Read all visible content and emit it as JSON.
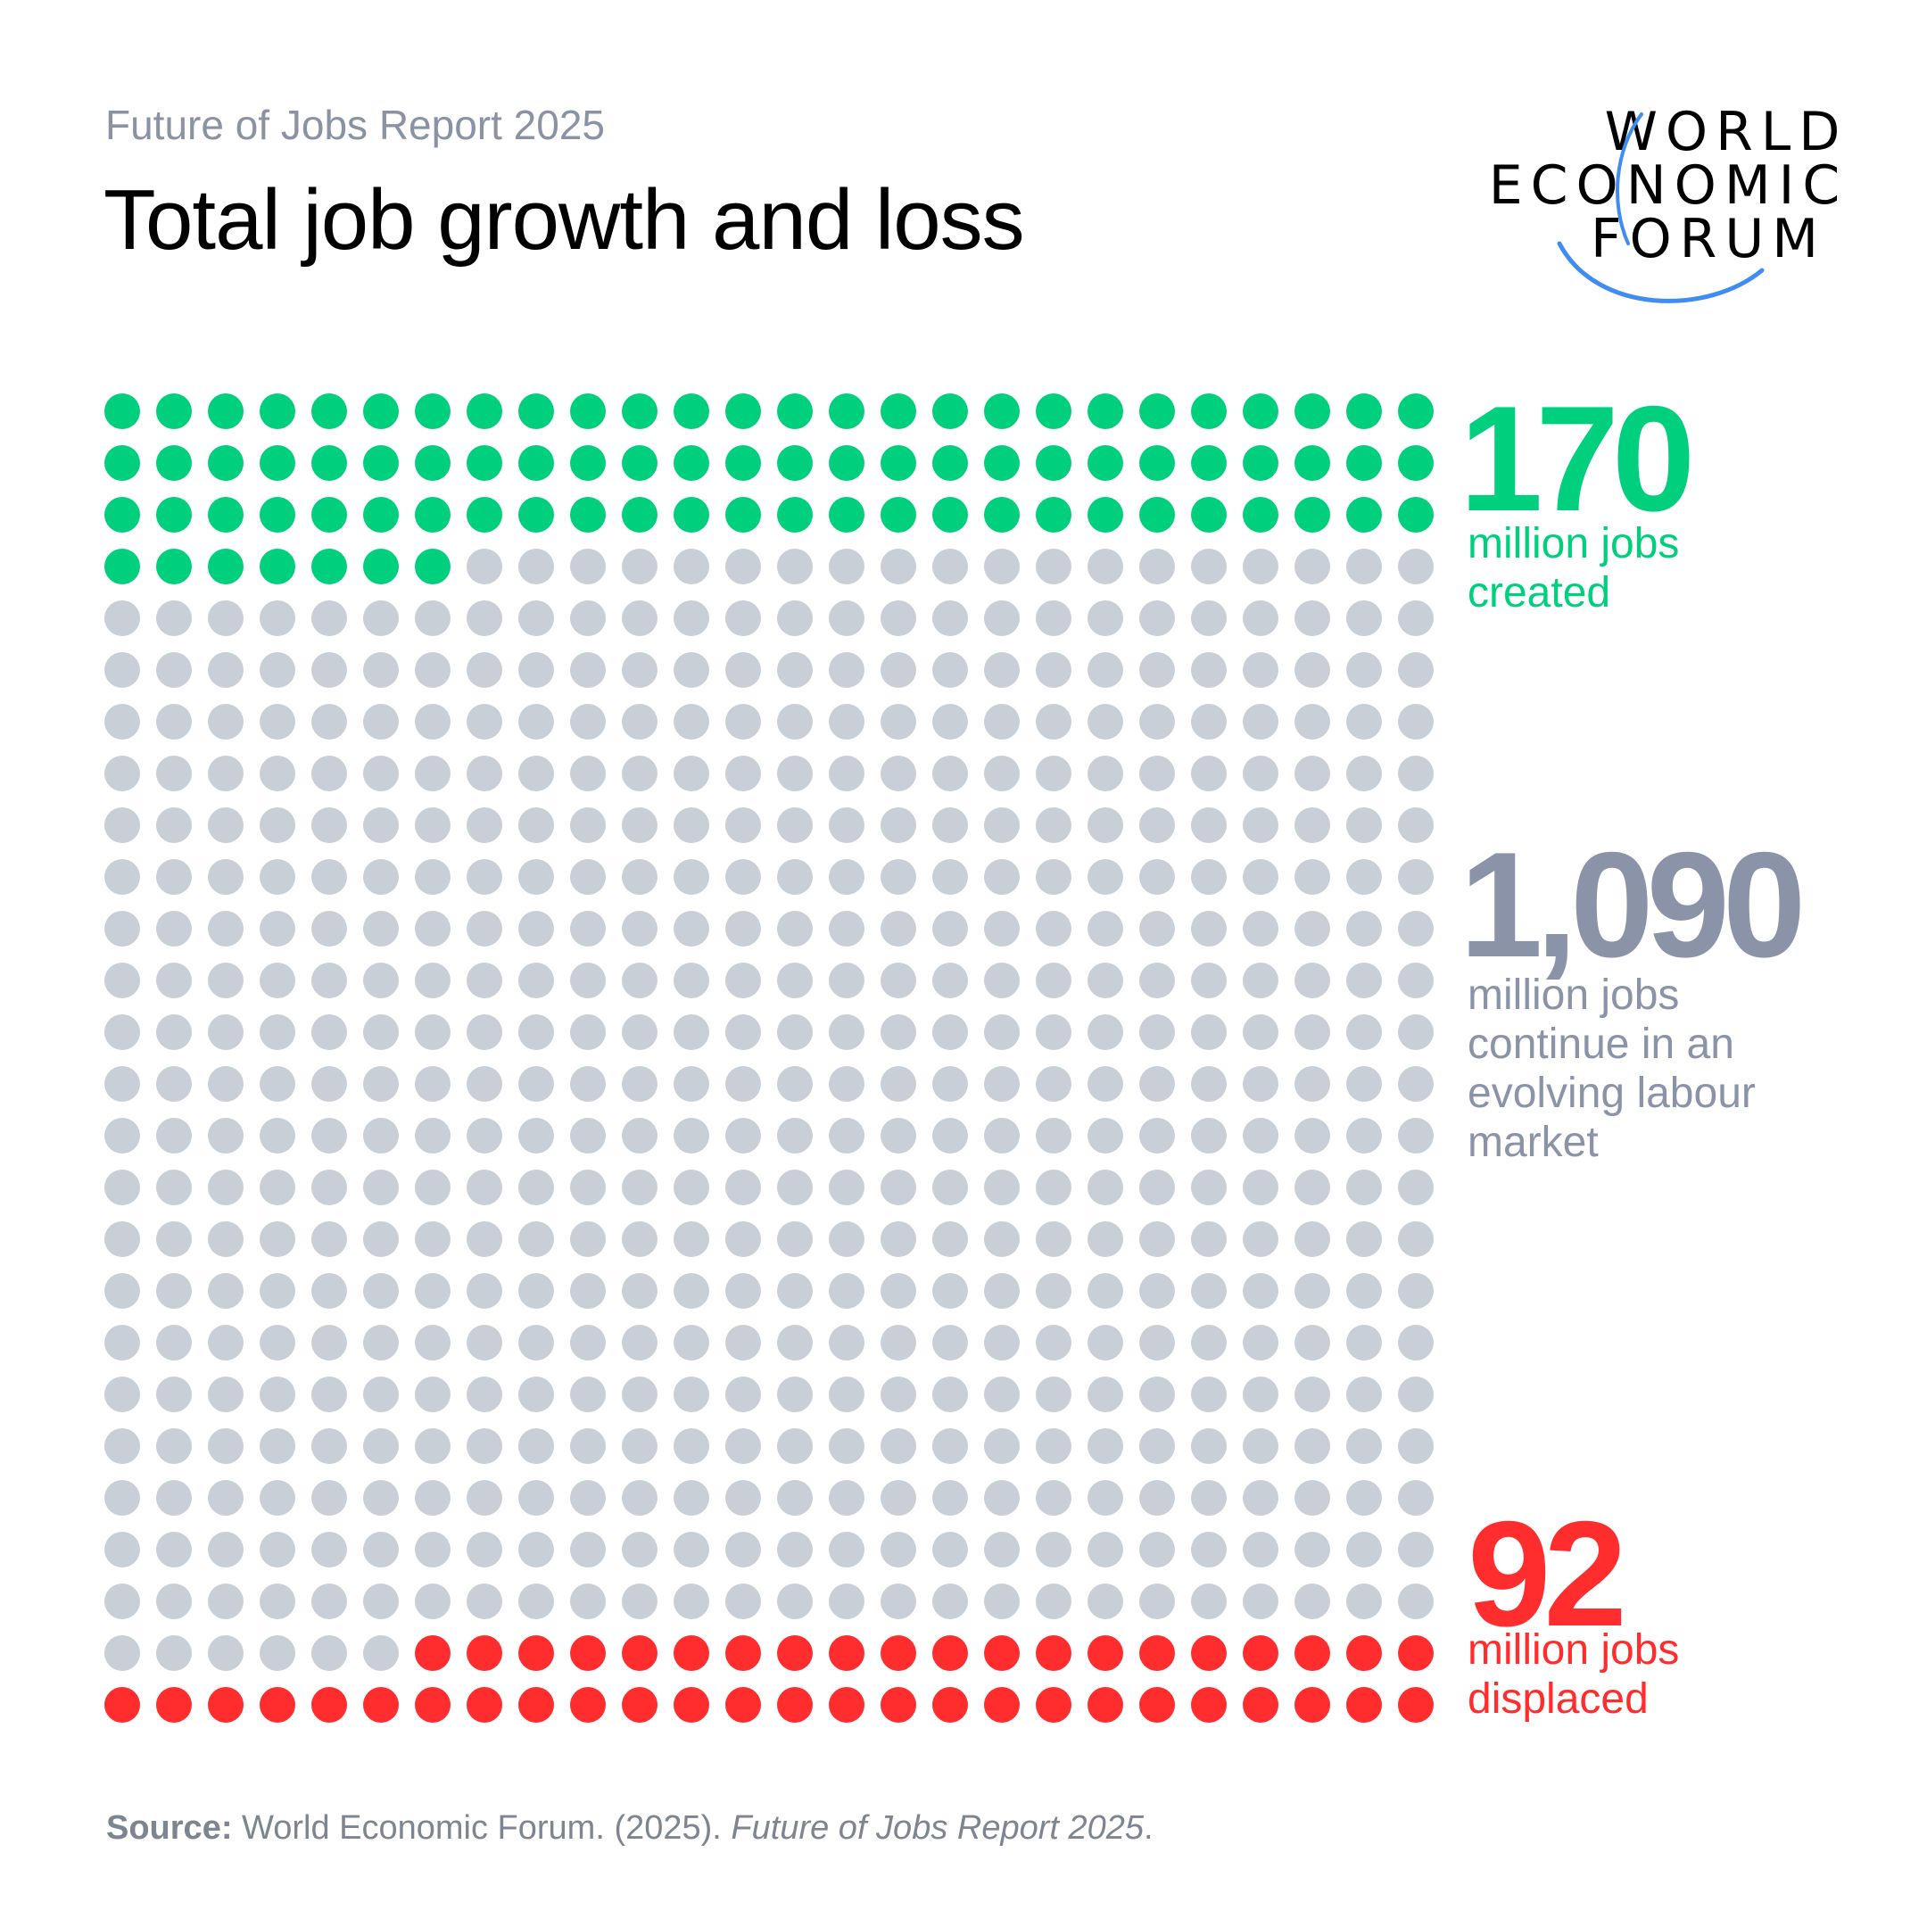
{
  "header": {
    "subtitle": "Future of Jobs Report 2025",
    "title": "Total job growth and loss"
  },
  "logo": {
    "lines": [
      "WORLD",
      "ECONOMIC",
      "FORUM"
    ],
    "arc_color": "#3f8df2"
  },
  "chart_data": {
    "type": "waffle",
    "columns": 26,
    "rows": 26,
    "units": "million jobs",
    "series": [
      {
        "name": "million jobs created",
        "value": 170,
        "dots": 85,
        "color": "#00cf7e",
        "position": "top"
      },
      {
        "name": "million jobs continue in an evolving labour market",
        "value": 1090,
        "dots": 545,
        "color": "#c9cfd6",
        "position": "middle"
      },
      {
        "name": "million jobs displaced",
        "value": 92,
        "dots": 46,
        "color": "#ff2d2d",
        "position": "bottom"
      }
    ]
  },
  "stats": {
    "created": {
      "value": "170",
      "desc": [
        "million jobs",
        "created"
      ]
    },
    "continue": {
      "value": "1,090",
      "desc": [
        "million jobs",
        "continue in an",
        "evolving labour",
        "market"
      ]
    },
    "displaced": {
      "value": "92",
      "desc": [
        "million jobs",
        "displaced"
      ]
    }
  },
  "source": {
    "label": "Source:",
    "text": " World Economic Forum. (2025). ",
    "title": "Future of Jobs Report 2025",
    "end": "."
  }
}
